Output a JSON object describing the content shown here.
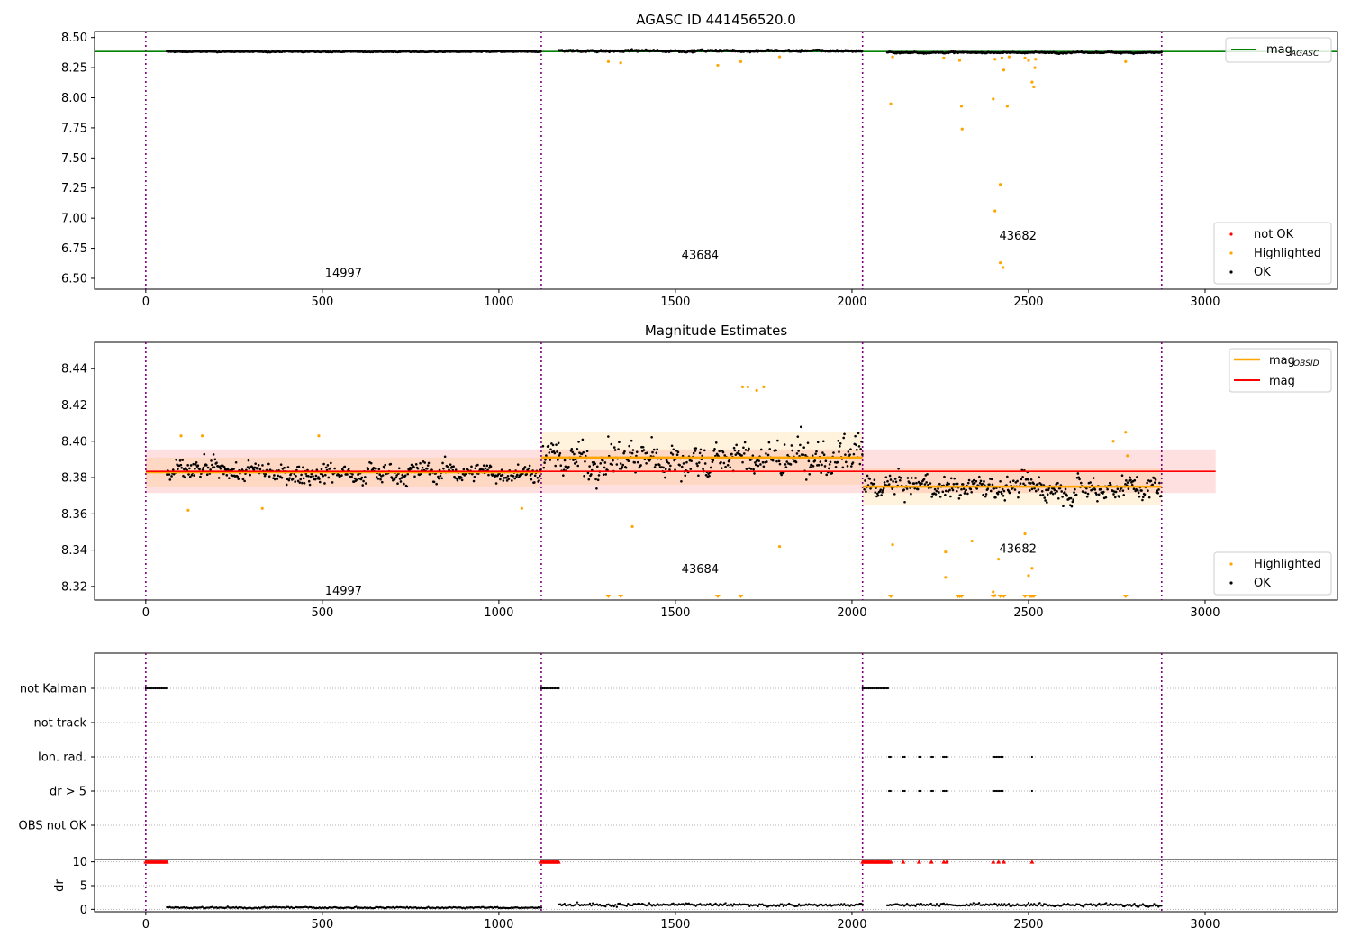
{
  "chart_data": [
    {
      "type": "scatter",
      "title": "AGASC ID 441456520.0",
      "xlabel": "",
      "ylabel": "",
      "xlim": [
        -145,
        3375
      ],
      "ylim": [
        6.41,
        8.55
      ],
      "xticks": [
        "0",
        "500",
        "1000",
        "1500",
        "2000",
        "2500",
        "3000"
      ],
      "yticks": [
        "6.50",
        "6.75",
        "7.00",
        "7.25",
        "7.50",
        "7.75",
        "8.00",
        "8.25",
        "8.50"
      ],
      "obs_boundaries": [
        0,
        1120,
        2030,
        2877
      ],
      "obs_labels": [
        {
          "text": "14997",
          "x": 560,
          "y": 6.51
        },
        {
          "text": "43684",
          "x": 1570,
          "y": 6.66
        },
        {
          "text": "43682",
          "x": 2470,
          "y": 6.82
        }
      ],
      "reference_line": {
        "name": "mag",
        "sub": "AGASC",
        "y": 8.384,
        "color": "#008000"
      },
      "segments": [
        {
          "x0": 60,
          "x1": 1120,
          "mean": 8.383,
          "amp": 0.008
        },
        {
          "x0": 1170,
          "x1": 2030,
          "mean": 8.39,
          "amp": 0.018
        },
        {
          "x0": 2100,
          "x1": 2877,
          "mean": 8.376,
          "amp": 0.012
        }
      ],
      "highlighted_points": [
        [
          1310,
          8.3
        ],
        [
          1345,
          8.29
        ],
        [
          1620,
          8.27
        ],
        [
          1685,
          8.3
        ],
        [
          1795,
          8.34
        ],
        [
          2110,
          7.95
        ],
        [
          2115,
          8.34
        ],
        [
          2260,
          8.33
        ],
        [
          2305,
          8.31
        ],
        [
          2310,
          7.93
        ],
        [
          2312,
          7.74
        ],
        [
          2400,
          7.99
        ],
        [
          2405,
          8.32
        ],
        [
          2420,
          7.28
        ],
        [
          2425,
          8.33
        ],
        [
          2430,
          8.23
        ],
        [
          2440,
          7.93
        ],
        [
          2445,
          8.34
        ],
        [
          2405,
          7.06
        ],
        [
          2420,
          6.63
        ],
        [
          2428,
          6.59
        ],
        [
          2490,
          8.33
        ],
        [
          2500,
          8.31
        ],
        [
          2510,
          8.13
        ],
        [
          2515,
          8.09
        ],
        [
          2520,
          8.32
        ],
        [
          2518,
          8.25
        ],
        [
          2775,
          8.3
        ]
      ],
      "legend_upper": [
        "mag"
      ],
      "legend_lower": [
        "not OK",
        "Highlighted",
        "OK"
      ],
      "legend_lower_colors": [
        "#ff0000",
        "#ffa500",
        "#000000"
      ],
      "grid": false
    },
    {
      "type": "scatter",
      "title": "Magnitude Estimates",
      "xlabel": "",
      "ylabel": "",
      "xlim": [
        -145,
        3375
      ],
      "ylim": [
        8.3125,
        8.4545
      ],
      "xticks": [
        "0",
        "500",
        "1000",
        "1500",
        "2000",
        "2500",
        "3000"
      ],
      "yticks": [
        "8.32",
        "8.34",
        "8.36",
        "8.38",
        "8.40",
        "8.42",
        "8.44"
      ],
      "obs_boundaries": [
        0,
        1120,
        2030,
        2877
      ],
      "obs_labels": [
        {
          "text": "14997",
          "x": 560,
          "y": 8.3155
        },
        {
          "text": "43684",
          "x": 1570,
          "y": 8.3275
        },
        {
          "text": "43682",
          "x": 2470,
          "y": 8.3385
        }
      ],
      "global_mag": {
        "y": 8.3834,
        "band": [
          8.3715,
          8.3955
        ],
        "x0": 0,
        "x1": 3030,
        "color": "#ff0000"
      },
      "obsid_mags": [
        {
          "x0": 0,
          "x1": 1120,
          "y": 8.383,
          "band": [
            8.375,
            8.391
          ]
        },
        {
          "x0": 1120,
          "x1": 2030,
          "y": 8.391,
          "band": [
            8.376,
            8.405
          ]
        },
        {
          "x0": 2030,
          "x1": 2877,
          "y": 8.375,
          "band": [
            8.365,
            8.385
          ]
        }
      ],
      "highlighted_points": [
        [
          100,
          8.403
        ],
        [
          120,
          8.362
        ],
        [
          160,
          8.403
        ],
        [
          330,
          8.363
        ],
        [
          490,
          8.403
        ],
        [
          1065,
          8.363
        ],
        [
          1378,
          8.353
        ],
        [
          1795,
          8.342
        ],
        [
          2115,
          8.343
        ],
        [
          2265,
          8.325
        ],
        [
          2265,
          8.339
        ],
        [
          2340,
          8.345
        ],
        [
          2400,
          8.317
        ],
        [
          2405,
          8.315
        ],
        [
          2415,
          8.335
        ],
        [
          2490,
          8.349
        ],
        [
          2500,
          8.326
        ],
        [
          2510,
          8.33
        ],
        [
          2740,
          8.4
        ],
        [
          2775,
          8.405
        ],
        [
          2780,
          8.392
        ],
        [
          1690,
          8.43
        ],
        [
          1705,
          8.43
        ],
        [
          1730,
          8.428
        ],
        [
          1750,
          8.43
        ]
      ],
      "highlighted_offscale_x": [
        1310,
        1345,
        1620,
        1685,
        2110,
        2300,
        2305,
        2310,
        2400,
        2420,
        2430,
        2490,
        2505,
        2510,
        2515,
        2775
      ],
      "legend_upper": [
        "mag",
        "mag"
      ],
      "legend_upper_sub": [
        "OBSID",
        ""
      ],
      "legend_lower": [
        "Highlighted",
        "OK"
      ],
      "legend_lower_colors": [
        "#ffa500",
        "#000000"
      ],
      "grid": false
    },
    {
      "type": "scatter",
      "title": "",
      "xlabel": "",
      "ylabel": "",
      "xlim": [
        -145,
        3375
      ],
      "categories": [
        "not Kalman",
        "not track",
        "Ion. rad.",
        "dr > 5",
        "OBS not OK"
      ],
      "flag_runs": {
        "not Kalman": [
          [
            0,
            60
          ],
          [
            1120,
            1170
          ],
          [
            2030,
            2105
          ]
        ],
        "not track": [],
        "Ion. rad.": [
          [
            2105,
            2110
          ],
          [
            2145,
            2150
          ],
          [
            2190,
            2195
          ],
          [
            2225,
            2230
          ],
          [
            2258,
            2270
          ],
          [
            2400,
            2430
          ],
          [
            2510,
            2512
          ]
        ],
        "dr > 5": [
          [
            2105,
            2110
          ],
          [
            2145,
            2150
          ],
          [
            2190,
            2195
          ],
          [
            2225,
            2230
          ],
          [
            2258,
            2270
          ],
          [
            2400,
            2430
          ],
          [
            2510,
            2512
          ]
        ],
        "OBS not OK": []
      },
      "obs_boundaries": [
        0,
        1120,
        2030,
        2877
      ],
      "grid": true
    },
    {
      "type": "scatter",
      "title": "",
      "xlabel": "",
      "ylabel": "dr",
      "xlim": [
        -145,
        3375
      ],
      "ylim": [
        -0.5,
        10.5
      ],
      "xticks": [
        "0",
        "500",
        "1000",
        "1500",
        "2000",
        "2500",
        "3000"
      ],
      "yticks": [
        "0",
        "5",
        "10"
      ],
      "obs_boundaries": [
        0,
        1120,
        2030,
        2877
      ],
      "clipped_runs": [
        [
          0,
          60
        ],
        [
          1120,
          1170
        ],
        [
          2030,
          2105
        ]
      ],
      "clipped_singles": [
        2105,
        2110,
        2145,
        2190,
        2225,
        2260,
        2268,
        2400,
        2415,
        2430,
        2510
      ],
      "segments": [
        {
          "x0": 60,
          "x1": 1120,
          "mean": 0.3,
          "amp": 0.25
        },
        {
          "x0": 1170,
          "x1": 2030,
          "mean": 0.8,
          "amp": 0.5
        },
        {
          "x0": 2100,
          "x1": 2877,
          "mean": 0.8,
          "amp": 0.5
        }
      ],
      "grid": true
    }
  ]
}
